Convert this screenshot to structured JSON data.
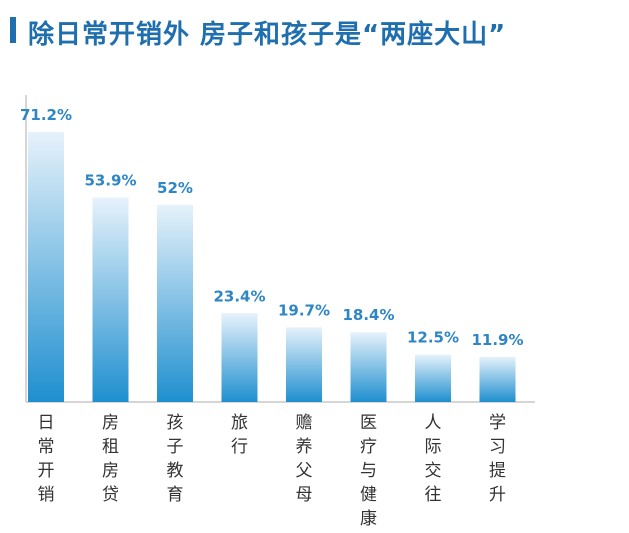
{
  "title": "除日常开销外 房子和孩子是“两座大山”",
  "colors": {
    "accent": "#1f6fae",
    "bar_top": "#e6f2fb",
    "bar_bottom": "#1f8fcf",
    "label": "#2f86c5",
    "axis": "#c8c8c8"
  },
  "chart_data": {
    "type": "bar",
    "title": "除日常开销外 房子和孩子是“两座大山”",
    "xlabel": "",
    "ylabel": "",
    "categories": [
      "日常开销",
      "房租房贷",
      "孩子教育",
      "旅行",
      "赡养父母",
      "医疗与健康",
      "人际交往",
      "学习提升"
    ],
    "values": [
      71.2,
      53.9,
      52,
      23.4,
      19.7,
      18.4,
      12.5,
      11.9
    ],
    "value_labels": [
      "71.2%",
      "53.9%",
      "52%",
      "23.4%",
      "19.7%",
      "18.4%",
      "12.5%",
      "11.9%"
    ],
    "ylim": [
      0,
      71.2
    ],
    "grid": false,
    "legend": "none"
  }
}
